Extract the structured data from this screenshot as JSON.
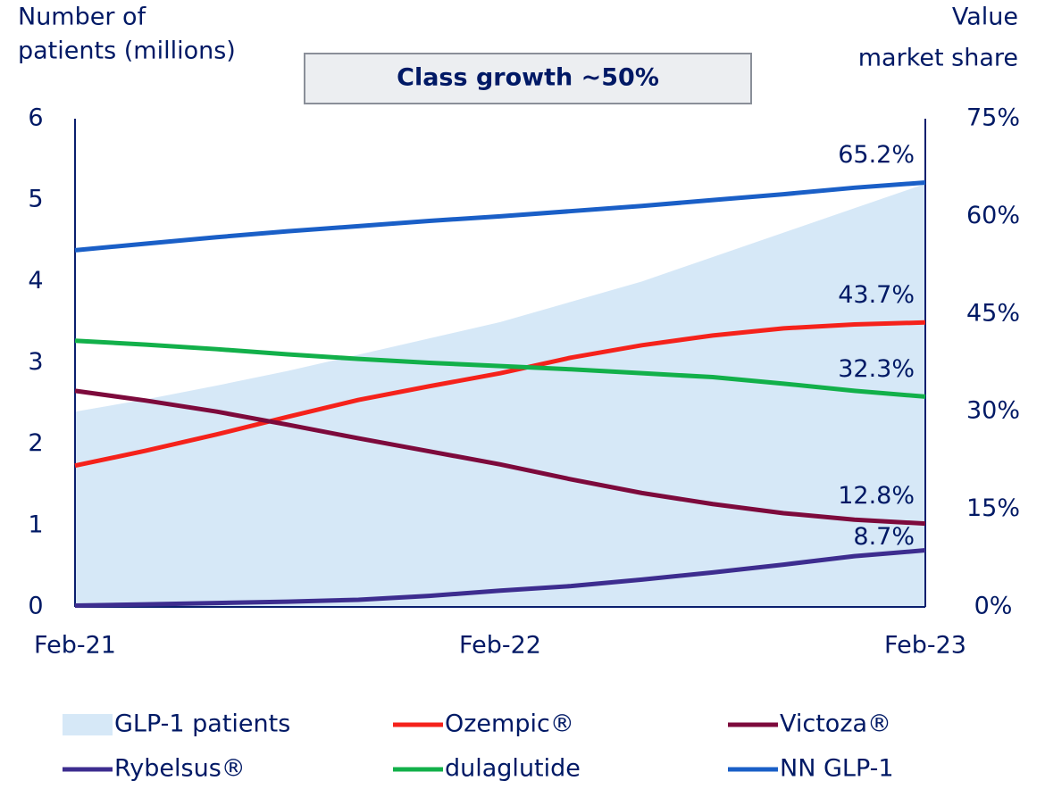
{
  "chart_data": {
    "type": "line",
    "annotation": "Class growth ~50%",
    "ylabel": [
      "Number of",
      "patients (millions)"
    ],
    "y2label": [
      "Value",
      "market share"
    ],
    "categories": [
      "Feb-21",
      null,
      null,
      null,
      null,
      null,
      "Feb-22",
      null,
      null,
      null,
      null,
      null,
      "Feb-23"
    ],
    "ylim": [
      0,
      6
    ],
    "yticks": [
      0,
      1,
      2,
      3,
      4,
      5,
      6
    ],
    "y2lim": [
      0,
      75
    ],
    "y2ticks": [
      {
        "value": 0,
        "label": "0%"
      },
      {
        "value": 15,
        "label": "15%"
      },
      {
        "value": 30,
        "label": "30%"
      },
      {
        "value": 45,
        "label": "45%"
      },
      {
        "value": 60,
        "label": "60%"
      },
      {
        "value": 75,
        "label": "75%"
      }
    ],
    "series": [
      {
        "name": "GLP-1 patients",
        "kind": "area",
        "color": "#d6e8f7",
        "values": [
          2.4,
          2.55,
          2.72,
          2.9,
          3.1,
          3.3,
          3.5,
          3.75,
          4.0,
          4.3,
          4.6,
          4.9,
          5.2
        ]
      },
      {
        "name": "Ozempic®",
        "axis": "y2",
        "color": "#f5221b",
        "values": [
          21.7,
          24.0,
          26.5,
          29.2,
          31.8,
          33.9,
          35.9,
          38.3,
          40.2,
          41.7,
          42.8,
          43.4,
          43.7
        ],
        "value_labels": [
          null,
          null,
          null,
          null,
          null,
          null,
          null,
          null,
          null,
          null,
          null,
          null,
          "43.7%"
        ]
      },
      {
        "name": "Victoza®",
        "axis": "y2",
        "color": "#7d0a3c",
        "values": [
          33.2,
          31.7,
          30.0,
          28.0,
          25.9,
          23.9,
          21.9,
          19.6,
          17.5,
          15.8,
          14.4,
          13.4,
          12.8
        ],
        "value_labels": [
          null,
          null,
          null,
          null,
          null,
          null,
          null,
          null,
          null,
          null,
          null,
          null,
          "12.8%"
        ]
      },
      {
        "name": "Rybelsus®",
        "axis": "y2",
        "color": "#3d2d8f",
        "values": [
          0.2,
          0.4,
          0.6,
          0.8,
          1.1,
          1.7,
          2.5,
          3.2,
          4.2,
          5.3,
          6.5,
          7.8,
          8.7
        ],
        "value_labels": [
          null,
          null,
          null,
          null,
          null,
          null,
          null,
          null,
          null,
          null,
          null,
          null,
          "8.7%"
        ]
      },
      {
        "name": "dulaglutide",
        "axis": "y2",
        "color": "#12b04a",
        "values": [
          40.9,
          40.3,
          39.6,
          38.8,
          38.1,
          37.5,
          37.0,
          36.5,
          35.9,
          35.3,
          34.3,
          33.2,
          32.3
        ],
        "value_labels": [
          null,
          null,
          null,
          null,
          null,
          null,
          null,
          null,
          null,
          null,
          null,
          null,
          "32.3%"
        ]
      },
      {
        "name": "NN GLP-1",
        "axis": "y2",
        "color": "#1a5fc7",
        "values": [
          54.8,
          55.8,
          56.8,
          57.7,
          58.5,
          59.3,
          60.0,
          60.8,
          61.6,
          62.5,
          63.4,
          64.4,
          65.2
        ],
        "value_labels": [
          null,
          null,
          null,
          null,
          null,
          null,
          null,
          null,
          null,
          null,
          null,
          null,
          "65.2%"
        ]
      }
    ]
  }
}
